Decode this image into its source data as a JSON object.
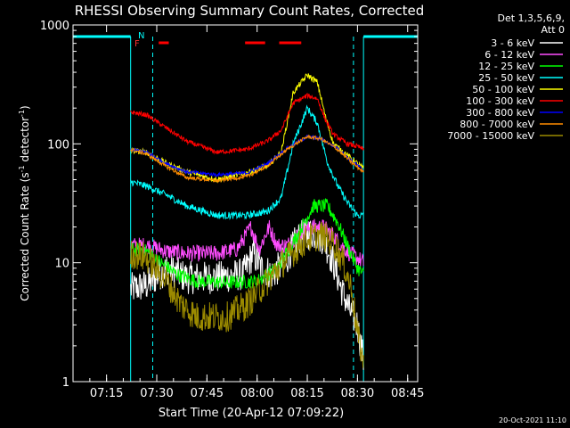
{
  "chart_data": {
    "type": "line",
    "title": "RHESSI Observing Summary Count Rates, Corrected",
    "xlabel": "Start Time (20-Apr-12 07:09:22)",
    "ylabel": "Corrected Count Rate (s",
    "ylabel_sup1": "-1",
    "ylabel_mid": " detector",
    "ylabel_sup2": "-1",
    "ylabel_end": ")",
    "y_scale": "log",
    "ylim": [
      1,
      1000
    ],
    "xlim": [
      7.083,
      8.8
    ],
    "x_ticks": [
      {
        "v": 7.25,
        "label": "07:15"
      },
      {
        "v": 7.5,
        "label": "07:30"
      },
      {
        "v": 7.75,
        "label": "07:45"
      },
      {
        "v": 8.0,
        "label": "08:00"
      },
      {
        "v": 8.25,
        "label": "08:15"
      },
      {
        "v": 8.5,
        "label": "08:30"
      },
      {
        "v": 8.75,
        "label": "08:45"
      }
    ],
    "y_ticks": [
      {
        "v": 1,
        "label": "1"
      },
      {
        "v": 10,
        "label": "10"
      },
      {
        "v": 100,
        "label": "100"
      },
      {
        "v": 1000,
        "label": "1000"
      }
    ],
    "legend": {
      "placement": "right",
      "header1": "Det 1,3,5,6,9,",
      "header2": "Att 0"
    },
    "annotations": {
      "flag_f": "F",
      "flag_n": "N",
      "date_stamp": "20-Oct-2021 11:10"
    },
    "data_start": 7.37,
    "data_end": 8.53,
    "night_intervals": [
      [
        7.083,
        7.37
      ],
      [
        8.53,
        8.8
      ]
    ],
    "saa_lines": [
      7.48,
      8.48
    ],
    "flare_flag_bars": [
      [
        7.51,
        7.56
      ],
      [
        7.94,
        8.04
      ],
      [
        8.11,
        8.22
      ]
    ],
    "series": [
      {
        "name": "3 - 6 keV",
        "color": "#ffffff",
        "x": [
          7.37,
          7.45,
          7.55,
          7.65,
          7.8,
          7.93,
          7.98,
          8.02,
          8.08,
          8.15,
          8.2,
          8.27,
          8.33,
          8.38,
          8.42,
          8.46,
          8.5,
          8.53
        ],
        "y": [
          6,
          6.5,
          9,
          7.5,
          7.5,
          8,
          12,
          9,
          8,
          11,
          16,
          18,
          16,
          10,
          6,
          4,
          3,
          1.5
        ]
      },
      {
        "name": "6 - 12 keV",
        "color": "#ff4dff",
        "x": [
          7.37,
          7.45,
          7.55,
          7.65,
          7.8,
          7.9,
          7.97,
          8.01,
          8.06,
          8.1,
          8.15,
          8.2,
          8.27,
          8.33,
          8.38,
          8.42,
          8.46,
          8.5,
          8.53
        ],
        "y": [
          14,
          14,
          12.5,
          12,
          12,
          13,
          20,
          13,
          20,
          14,
          14,
          17,
          20,
          20,
          17,
          14,
          12,
          11,
          10
        ]
      },
      {
        "name": "12 - 25 keV",
        "color": "#00ff00",
        "x": [
          7.37,
          7.45,
          7.52,
          7.6,
          7.7,
          7.85,
          8.0,
          8.1,
          8.2,
          8.28,
          8.35,
          8.4,
          8.45,
          8.5,
          8.53
        ],
        "y": [
          13,
          12.5,
          10,
          8,
          7,
          6.8,
          7,
          9,
          17,
          30,
          30,
          22,
          14,
          9,
          8
        ]
      },
      {
        "name": "25 - 50 keV",
        "color": "#00ffff",
        "x": [
          7.37,
          7.45,
          7.55,
          7.65,
          7.8,
          7.95,
          8.05,
          8.12,
          8.18,
          8.25,
          8.3,
          8.35,
          8.4,
          8.45,
          8.5,
          8.53
        ],
        "y": [
          48,
          44,
          37,
          30,
          25,
          25,
          27,
          35,
          100,
          200,
          150,
          70,
          45,
          32,
          25,
          25
        ]
      },
      {
        "name": "50 - 100 keV",
        "color": "#ffff00",
        "x": [
          7.37,
          7.45,
          7.55,
          7.65,
          7.8,
          7.95,
          8.05,
          8.12,
          8.18,
          8.25,
          8.3,
          8.34,
          8.38,
          8.45,
          8.5,
          8.53
        ],
        "y": [
          88,
          85,
          68,
          58,
          50,
          57,
          65,
          85,
          270,
          380,
          330,
          170,
          100,
          80,
          68,
          62
        ]
      },
      {
        "name": "100 - 300 keV",
        "color": "#ff0000",
        "x": [
          7.37,
          7.45,
          7.55,
          7.65,
          7.8,
          7.95,
          8.05,
          8.12,
          8.18,
          8.25,
          8.3,
          8.34,
          8.38,
          8.45,
          8.5,
          8.53
        ],
        "y": [
          185,
          175,
          135,
          105,
          85,
          90,
          105,
          130,
          220,
          255,
          240,
          160,
          120,
          100,
          95,
          90
        ]
      },
      {
        "name": "300 - 800 keV",
        "color": "#0000ff",
        "x": [
          7.37,
          7.45,
          7.55,
          7.65,
          7.8,
          7.95,
          8.05,
          8.15,
          8.25,
          8.32,
          8.4,
          8.47,
          8.53
        ],
        "y": [
          90,
          85,
          68,
          58,
          55,
          57,
          68,
          92,
          115,
          110,
          92,
          72,
          60
        ]
      },
      {
        "name": "800 - 7000 keV",
        "color": "#ff8c00",
        "x": [
          7.37,
          7.45,
          7.55,
          7.65,
          7.8,
          7.95,
          8.05,
          8.15,
          8.25,
          8.32,
          8.4,
          8.47,
          8.53
        ],
        "y": [
          90,
          82,
          64,
          52,
          49,
          53,
          65,
          90,
          115,
          110,
          90,
          70,
          58
        ]
      },
      {
        "name": "7000 - 15000 keV",
        "color": "#9b8a00",
        "x": [
          7.37,
          7.45,
          7.55,
          7.62,
          7.7,
          7.85,
          7.95,
          8.05,
          8.15,
          8.25,
          8.32,
          8.38,
          8.43,
          8.47,
          8.5,
          8.53
        ],
        "y": [
          12,
          11,
          7,
          4.5,
          3.5,
          3.5,
          4.5,
          7,
          11,
          16,
          17,
          15,
          10,
          6,
          2.5,
          1.5
        ]
      }
    ]
  }
}
